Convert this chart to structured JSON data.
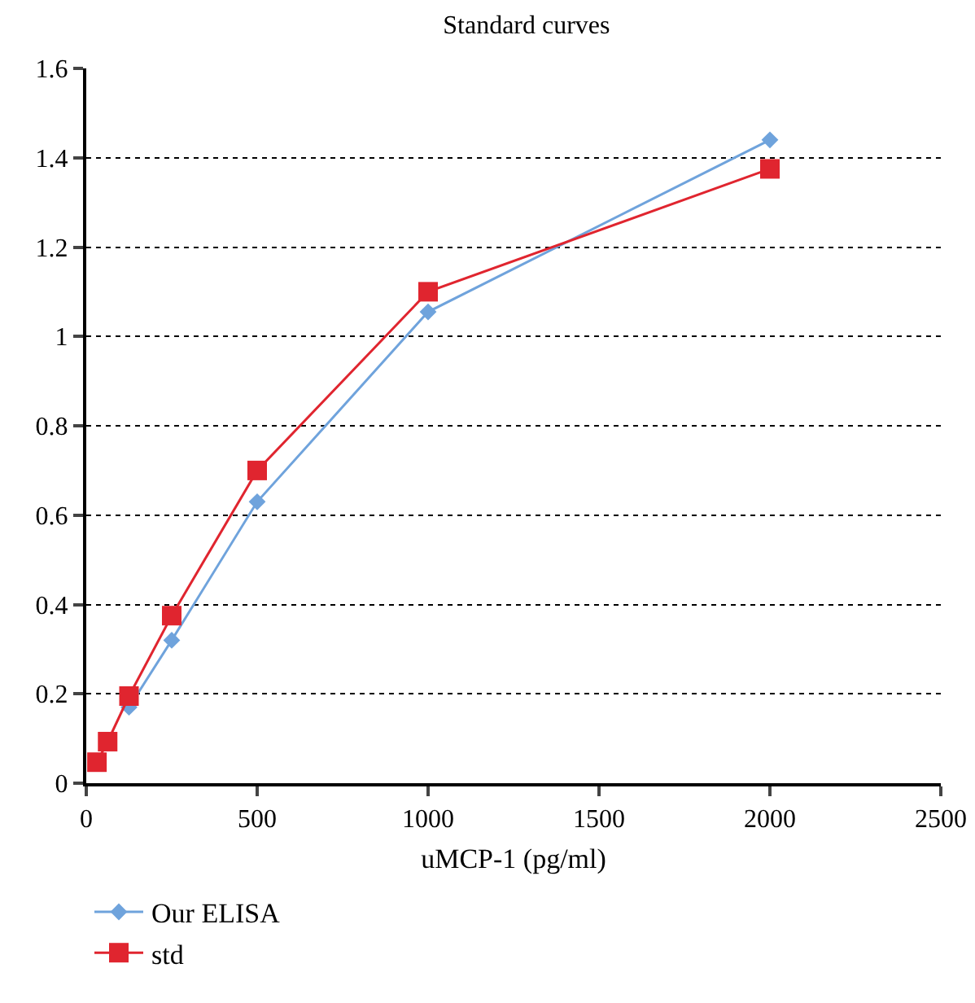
{
  "chart_data": {
    "type": "line",
    "title": "Standard curves",
    "xlabel": "uMCP-1 (pg/ml)",
    "x": [
      31.25,
      62.5,
      125,
      250,
      500,
      1000,
      2000
    ],
    "series": [
      {
        "name": "Our ELISA",
        "color": "#6fa3dc",
        "marker": "diamond",
        "values": [
          null,
          null,
          0.17,
          0.32,
          0.63,
          1.055,
          1.44
        ]
      },
      {
        "name": "std",
        "color": "#e0252f",
        "marker": "square",
        "values": [
          0.047,
          0.093,
          0.195,
          0.375,
          0.7,
          1.1,
          1.375
        ]
      }
    ],
    "xlim": [
      0,
      2500
    ],
    "xticks": [
      0,
      500,
      1000,
      1500,
      2000,
      2500
    ],
    "ylim": [
      0,
      1.6
    ],
    "yticks": [
      0,
      0.2,
      0.4,
      0.6,
      0.8,
      1,
      1.2,
      1.4,
      1.6
    ],
    "grid": "y",
    "legend": "bottom left",
    "line_style": "solid"
  }
}
